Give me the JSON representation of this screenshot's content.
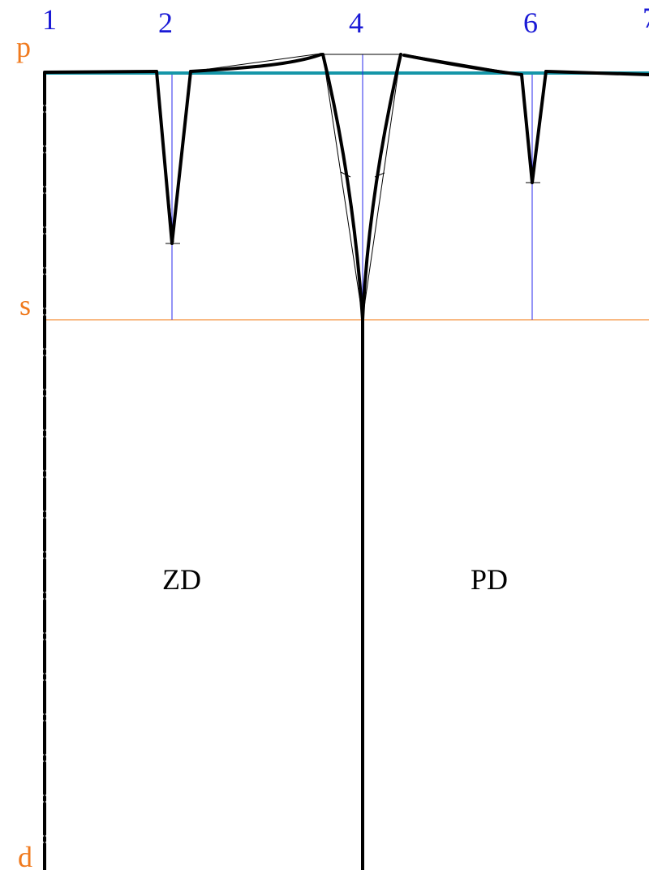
{
  "column_labels": [
    "1",
    "2",
    "4",
    "6",
    "7"
  ],
  "level_labels": {
    "waist": "p",
    "hip": "s",
    "hem": "d"
  },
  "piece_labels": {
    "back": "ZD",
    "front": "PD"
  },
  "colors": {
    "column_label": "#1a1ad6",
    "level_label": "#f07a1e",
    "guide_line": "#f7a25a",
    "waist_line": "#1596a8",
    "construction_line": "#2a2aee",
    "outline": "#000000"
  }
}
